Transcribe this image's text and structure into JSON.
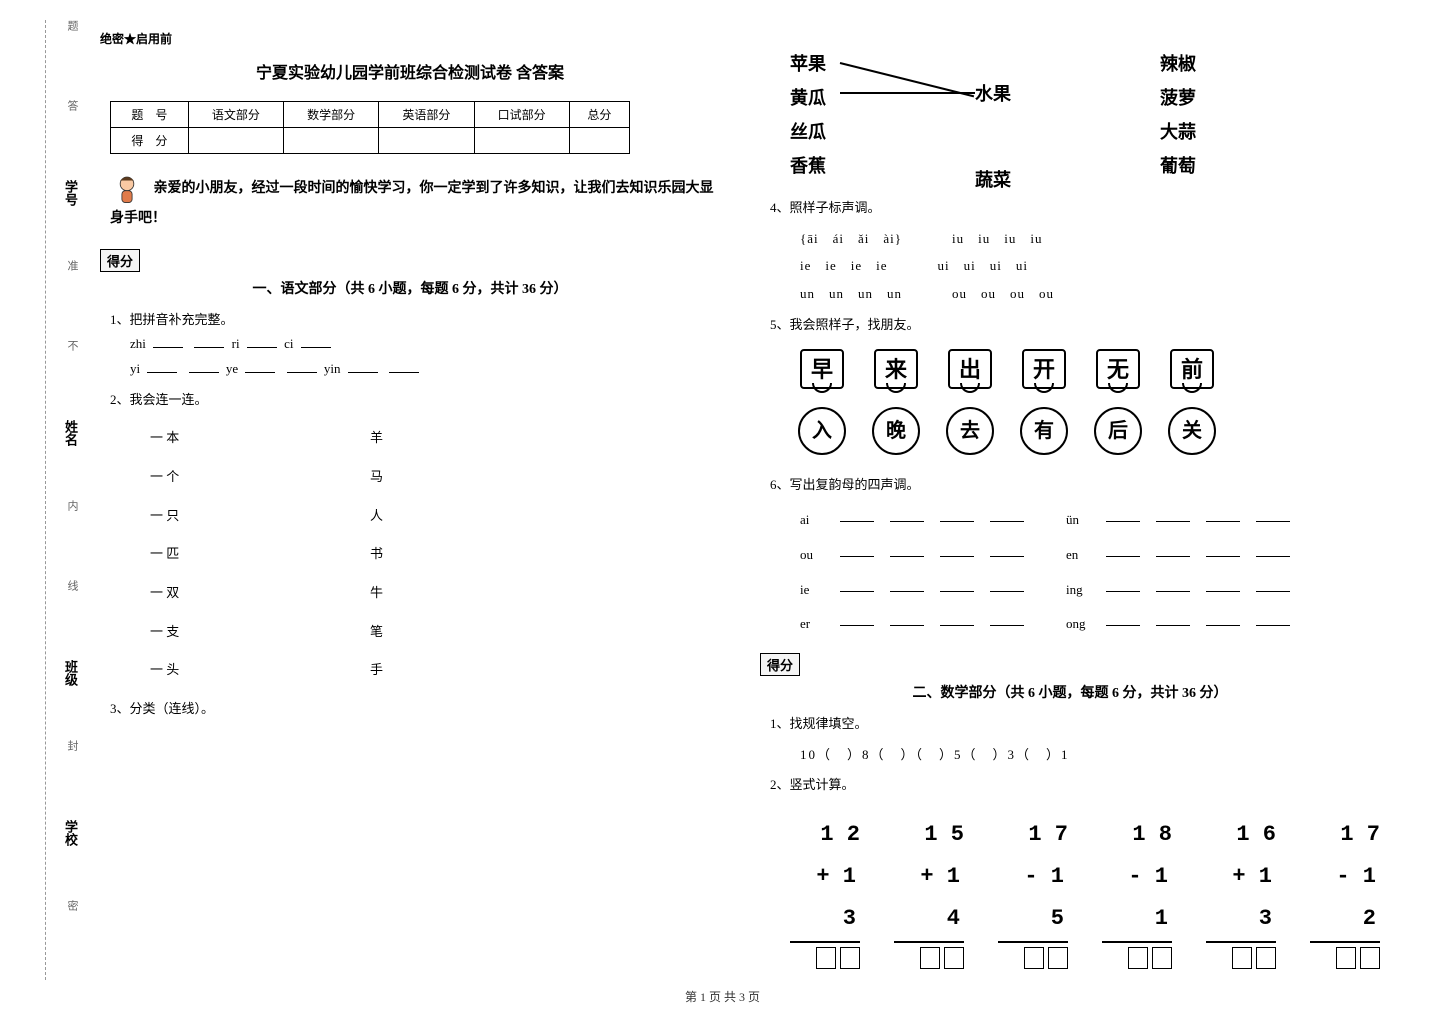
{
  "binding": {
    "labels": [
      "密",
      "封",
      "线",
      "内",
      "不",
      "准",
      "答",
      "题"
    ],
    "fields": [
      "学校",
      "班级",
      "姓名",
      "学号"
    ]
  },
  "secret": "绝密★启用前",
  "title": "宁夏实验幼儿园学前班综合检测试卷 含答案",
  "score_table": {
    "headers": [
      "题　号",
      "语文部分",
      "数学部分",
      "英语部分",
      "口试部分",
      "总分"
    ],
    "row_label": "得　分"
  },
  "intro": "亲爱的小朋友，经过一段时间的愉快学习，你一定学到了许多知识，让我们去知识乐园大显身手吧！",
  "score_chip": "得分",
  "section1": {
    "heading": "一、语文部分（共 6 小题，每题 6 分，共计 36 分）",
    "q1": {
      "no": "1、",
      "text": "把拼音补充完整。",
      "lines": [
        [
          "zhi",
          "___",
          "___",
          "ri",
          "___",
          "ci",
          "___"
        ],
        [
          "yi",
          "___",
          "___",
          "ye",
          "___",
          "___",
          "yin",
          "___",
          "___"
        ]
      ]
    },
    "q2": {
      "no": "2、",
      "text": "我会连一连。",
      "pairs": [
        [
          "一 本",
          "羊"
        ],
        [
          "一 个",
          "马"
        ],
        [
          "一 只",
          "人"
        ],
        [
          "一 匹",
          "书"
        ],
        [
          "一 双",
          "牛"
        ],
        [
          "一 支",
          "笔"
        ],
        [
          "一 头",
          "手"
        ]
      ]
    },
    "q3": {
      "no": "3、",
      "text": "分类（连线）。"
    },
    "fruitveg": {
      "left": [
        "苹果",
        "黄瓜",
        "丝瓜",
        "香蕉"
      ],
      "mid": [
        "水果",
        "蔬菜"
      ],
      "right": [
        "辣椒",
        "菠萝",
        "大蒜",
        "葡萄"
      ]
    },
    "q4": {
      "no": "4、",
      "text": "照样子标声调。",
      "rows": [
        {
          "left": "{āi　ái　ǎi　ài}",
          "right": "iu　iu　iu　iu"
        },
        {
          "left": "ie　ie　ie　ie",
          "right": "ui　ui　ui　ui"
        },
        {
          "left": "un　un　un　un",
          "right": "ou　ou　ou　ou"
        }
      ]
    },
    "q5": {
      "no": "5、",
      "text": "我会照样子，找朋友。",
      "boxes": [
        "早",
        "来",
        "出",
        "开",
        "无",
        "前"
      ],
      "suns": [
        "入",
        "晚",
        "去",
        "有",
        "后",
        "关"
      ]
    },
    "q6": {
      "no": "6、",
      "text": "写出复韵母的四声调。",
      "finals": [
        [
          "ai",
          "ün"
        ],
        [
          "ou",
          "en"
        ],
        [
          "ie",
          "ing"
        ],
        [
          "er",
          "ong"
        ]
      ]
    }
  },
  "section2": {
    "heading": "二、数学部分（共 6 小题，每题 6 分，共计 36 分）",
    "q1": {
      "no": "1、",
      "text": "找规律填空。",
      "pattern": "10（　）8（　）（　）5（　）3（　）1"
    },
    "q2": {
      "no": "2、",
      "text": "竖式计算。",
      "problems": [
        {
          "a": "1 2",
          "op": "+",
          "b": "1 3"
        },
        {
          "a": "1 5",
          "op": "+",
          "b": "1 4"
        },
        {
          "a": "1 7",
          "op": "-",
          "b": "1 5"
        },
        {
          "a": "1 8",
          "op": "-",
          "b": "1 1"
        },
        {
          "a": "1 6",
          "op": "+",
          "b": "1 3"
        },
        {
          "a": "1 7",
          "op": "-",
          "b": "1 2"
        }
      ]
    }
  },
  "footer": "第 1 页 共 3 页"
}
